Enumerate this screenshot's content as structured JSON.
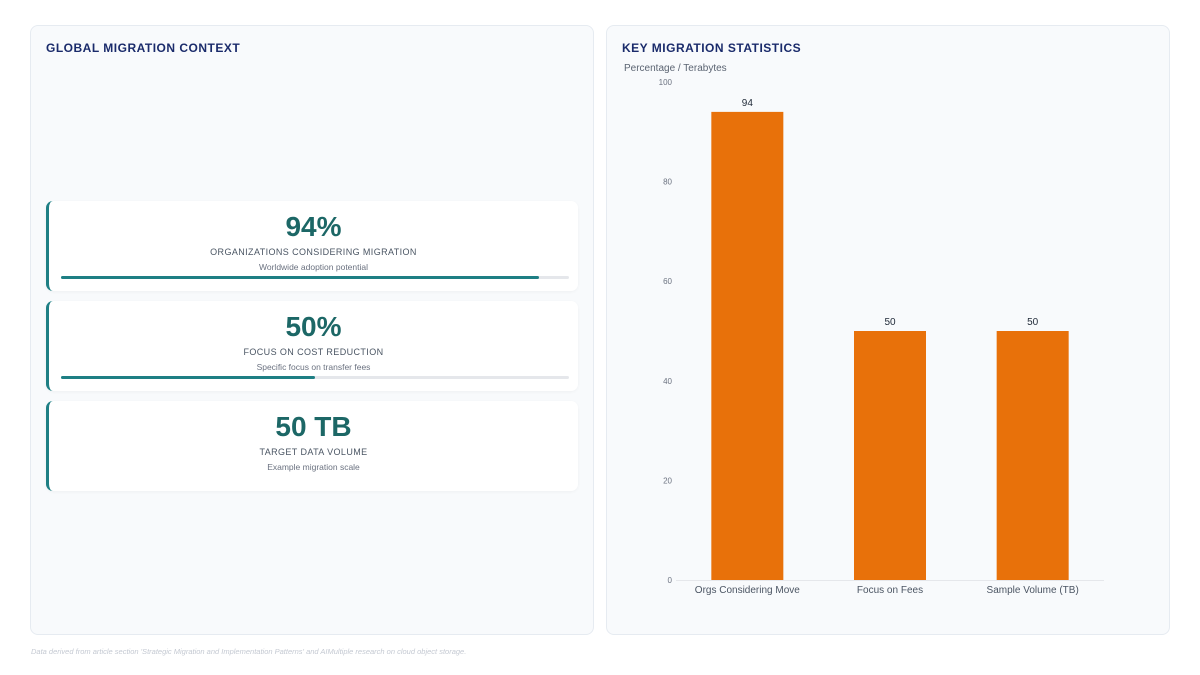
{
  "left_panel": {
    "title": "GLOBAL MIGRATION CONTEXT",
    "cards": [
      {
        "value": "94%",
        "label": "ORGANIZATIONS CONSIDERING MIGRATION",
        "sub": "Worldwide adoption potential",
        "progress": 0.94
      },
      {
        "value": "50%",
        "label": "FOCUS ON COST REDUCTION",
        "sub": "Specific focus on transfer fees",
        "progress": 0.5
      },
      {
        "value": "50 TB",
        "label": "TARGET DATA VOLUME",
        "sub": "Example migration scale"
      }
    ]
  },
  "right_panel": {
    "title": "KEY MIGRATION STATISTICS"
  },
  "chart_data": {
    "type": "bar",
    "title": "KEY MIGRATION STATISTICS",
    "ylabel": "Percentage / Terabytes",
    "xlabel": "",
    "categories": [
      "Orgs Considering Move",
      "Focus on Fees",
      "Sample Volume (TB)"
    ],
    "values": [
      94,
      50,
      50
    ],
    "data_labels": [
      "94",
      "50",
      "50"
    ],
    "ylim": [
      0,
      100
    ],
    "yticks": [
      0,
      20,
      40,
      60,
      80,
      100
    ],
    "grid": false,
    "legend": "none",
    "bar_color": "#e8710a"
  },
  "colors": {
    "accent": "#1e7f84",
    "value_text": "#1c6766",
    "title_text": "#1a2b6b"
  },
  "footnote": "Data derived from article section 'Strategic Migration and Implementation Patterns' and AIMultiple research on cloud object storage."
}
